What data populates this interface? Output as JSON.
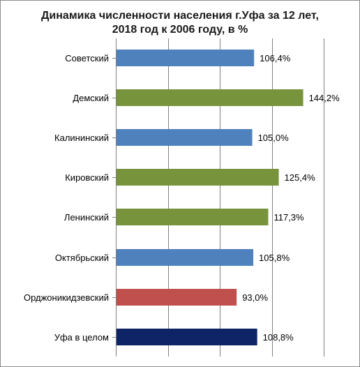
{
  "chart_data": {
    "type": "bar",
    "orientation": "horizontal",
    "title_lines": [
      "Динамика численности населения г.Уфа за 12 лет,",
      "2018 год к 2006 году, в %"
    ],
    "categories": [
      "Советский",
      "Демский",
      "Калининский",
      "Кировский",
      "Ленинский",
      "Октябрьский",
      "Орджоникидзевский",
      "Уфа в целом"
    ],
    "values": [
      106.4,
      144.2,
      105.0,
      125.4,
      117.3,
      105.8,
      93.0,
      108.8
    ],
    "value_labels": [
      "106,4%",
      "144,2%",
      "105,0%",
      "125,4%",
      "117,3%",
      "105,8%",
      "93,0%",
      "108,8%"
    ],
    "colors": [
      "#4F81BD",
      "#77933C",
      "#4F81BD",
      "#77933C",
      "#77933C",
      "#4F81BD",
      "#C0504D",
      "#0F2466"
    ],
    "xlim": [
      0,
      160
    ],
    "grid": true,
    "legend": "none"
  }
}
